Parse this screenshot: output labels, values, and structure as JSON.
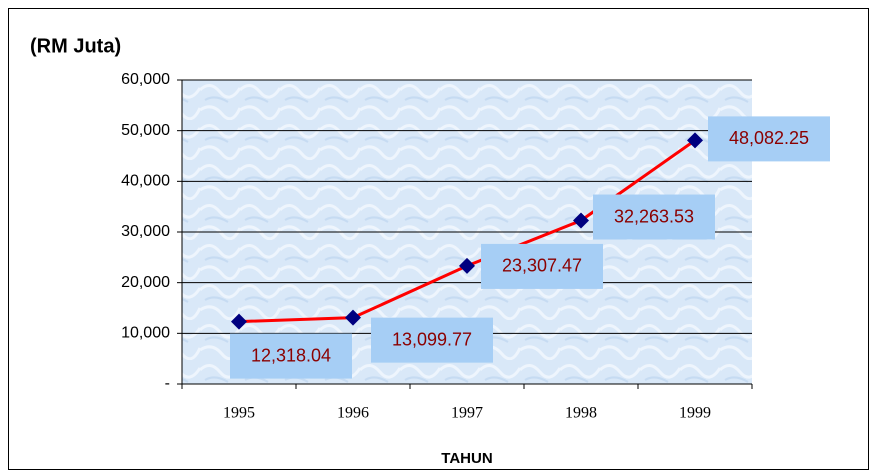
{
  "chart_data": {
    "type": "line",
    "title": "(RM Juta)",
    "x_label": "TAHUN",
    "categories": [
      "1995",
      "1996",
      "1997",
      "1998",
      "1999"
    ],
    "series": [
      {
        "name": "RM Juta",
        "color": "#ff0000",
        "marker_color": "#000080",
        "values": [
          12318.04,
          13099.77,
          23307.47,
          32263.53,
          48082.25
        ],
        "value_labels": [
          "12,318.04",
          "13,099.77",
          "23,307.47",
          "32,263.53",
          "48,082.25"
        ]
      }
    ],
    "ylim": [
      0,
      60000
    ],
    "yticks": [
      {
        "value": 0,
        "label": "-"
      },
      {
        "value": 10000,
        "label": "10,000"
      },
      {
        "value": 20000,
        "label": "20,000"
      },
      {
        "value": 30000,
        "label": "30,000"
      },
      {
        "value": 40000,
        "label": "40,000"
      },
      {
        "value": 50000,
        "label": "50,000"
      },
      {
        "value": 60000,
        "label": "60,000"
      }
    ],
    "grid": true
  }
}
